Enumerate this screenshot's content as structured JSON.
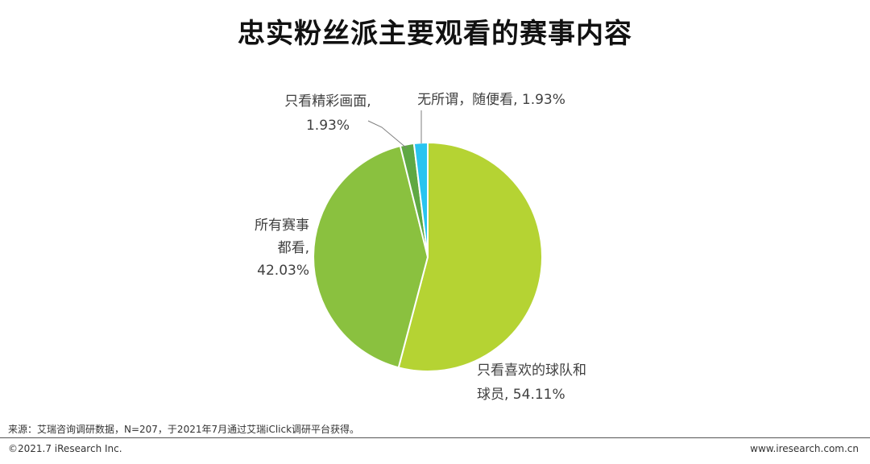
{
  "chart_data": {
    "type": "pie",
    "title": "忠实粉丝派主要观看的赛事内容",
    "slices": [
      {
        "name": "只看喜欢的球队和球员",
        "value": 54.11,
        "color": "#b5d333",
        "label_lines": [
          "只看喜欢的球队和",
          "球员, 54.11%"
        ]
      },
      {
        "name": "所有赛事都看",
        "value": 42.03,
        "color": "#8ac13f",
        "label_lines": [
          "所有赛事",
          "都看,",
          "42.03%"
        ]
      },
      {
        "name": "只看精彩画面",
        "value": 1.93,
        "color": "#5fa843",
        "label_lines": [
          "只看精彩画面,",
          "1.93%"
        ]
      },
      {
        "name": "无所谓，随便看",
        "value": 1.93,
        "color": "#29c4f0",
        "label_lines": [
          "无所谓，随便看, 1.93%"
        ]
      }
    ]
  },
  "footer": {
    "source": "来源：艾瑞咨询调研数据，N=207，于2021年7月通过艾瑞iClick调研平台获得。",
    "copyright": "©2021.7 iResearch Inc.",
    "website": "www.iresearch.com.cn"
  }
}
